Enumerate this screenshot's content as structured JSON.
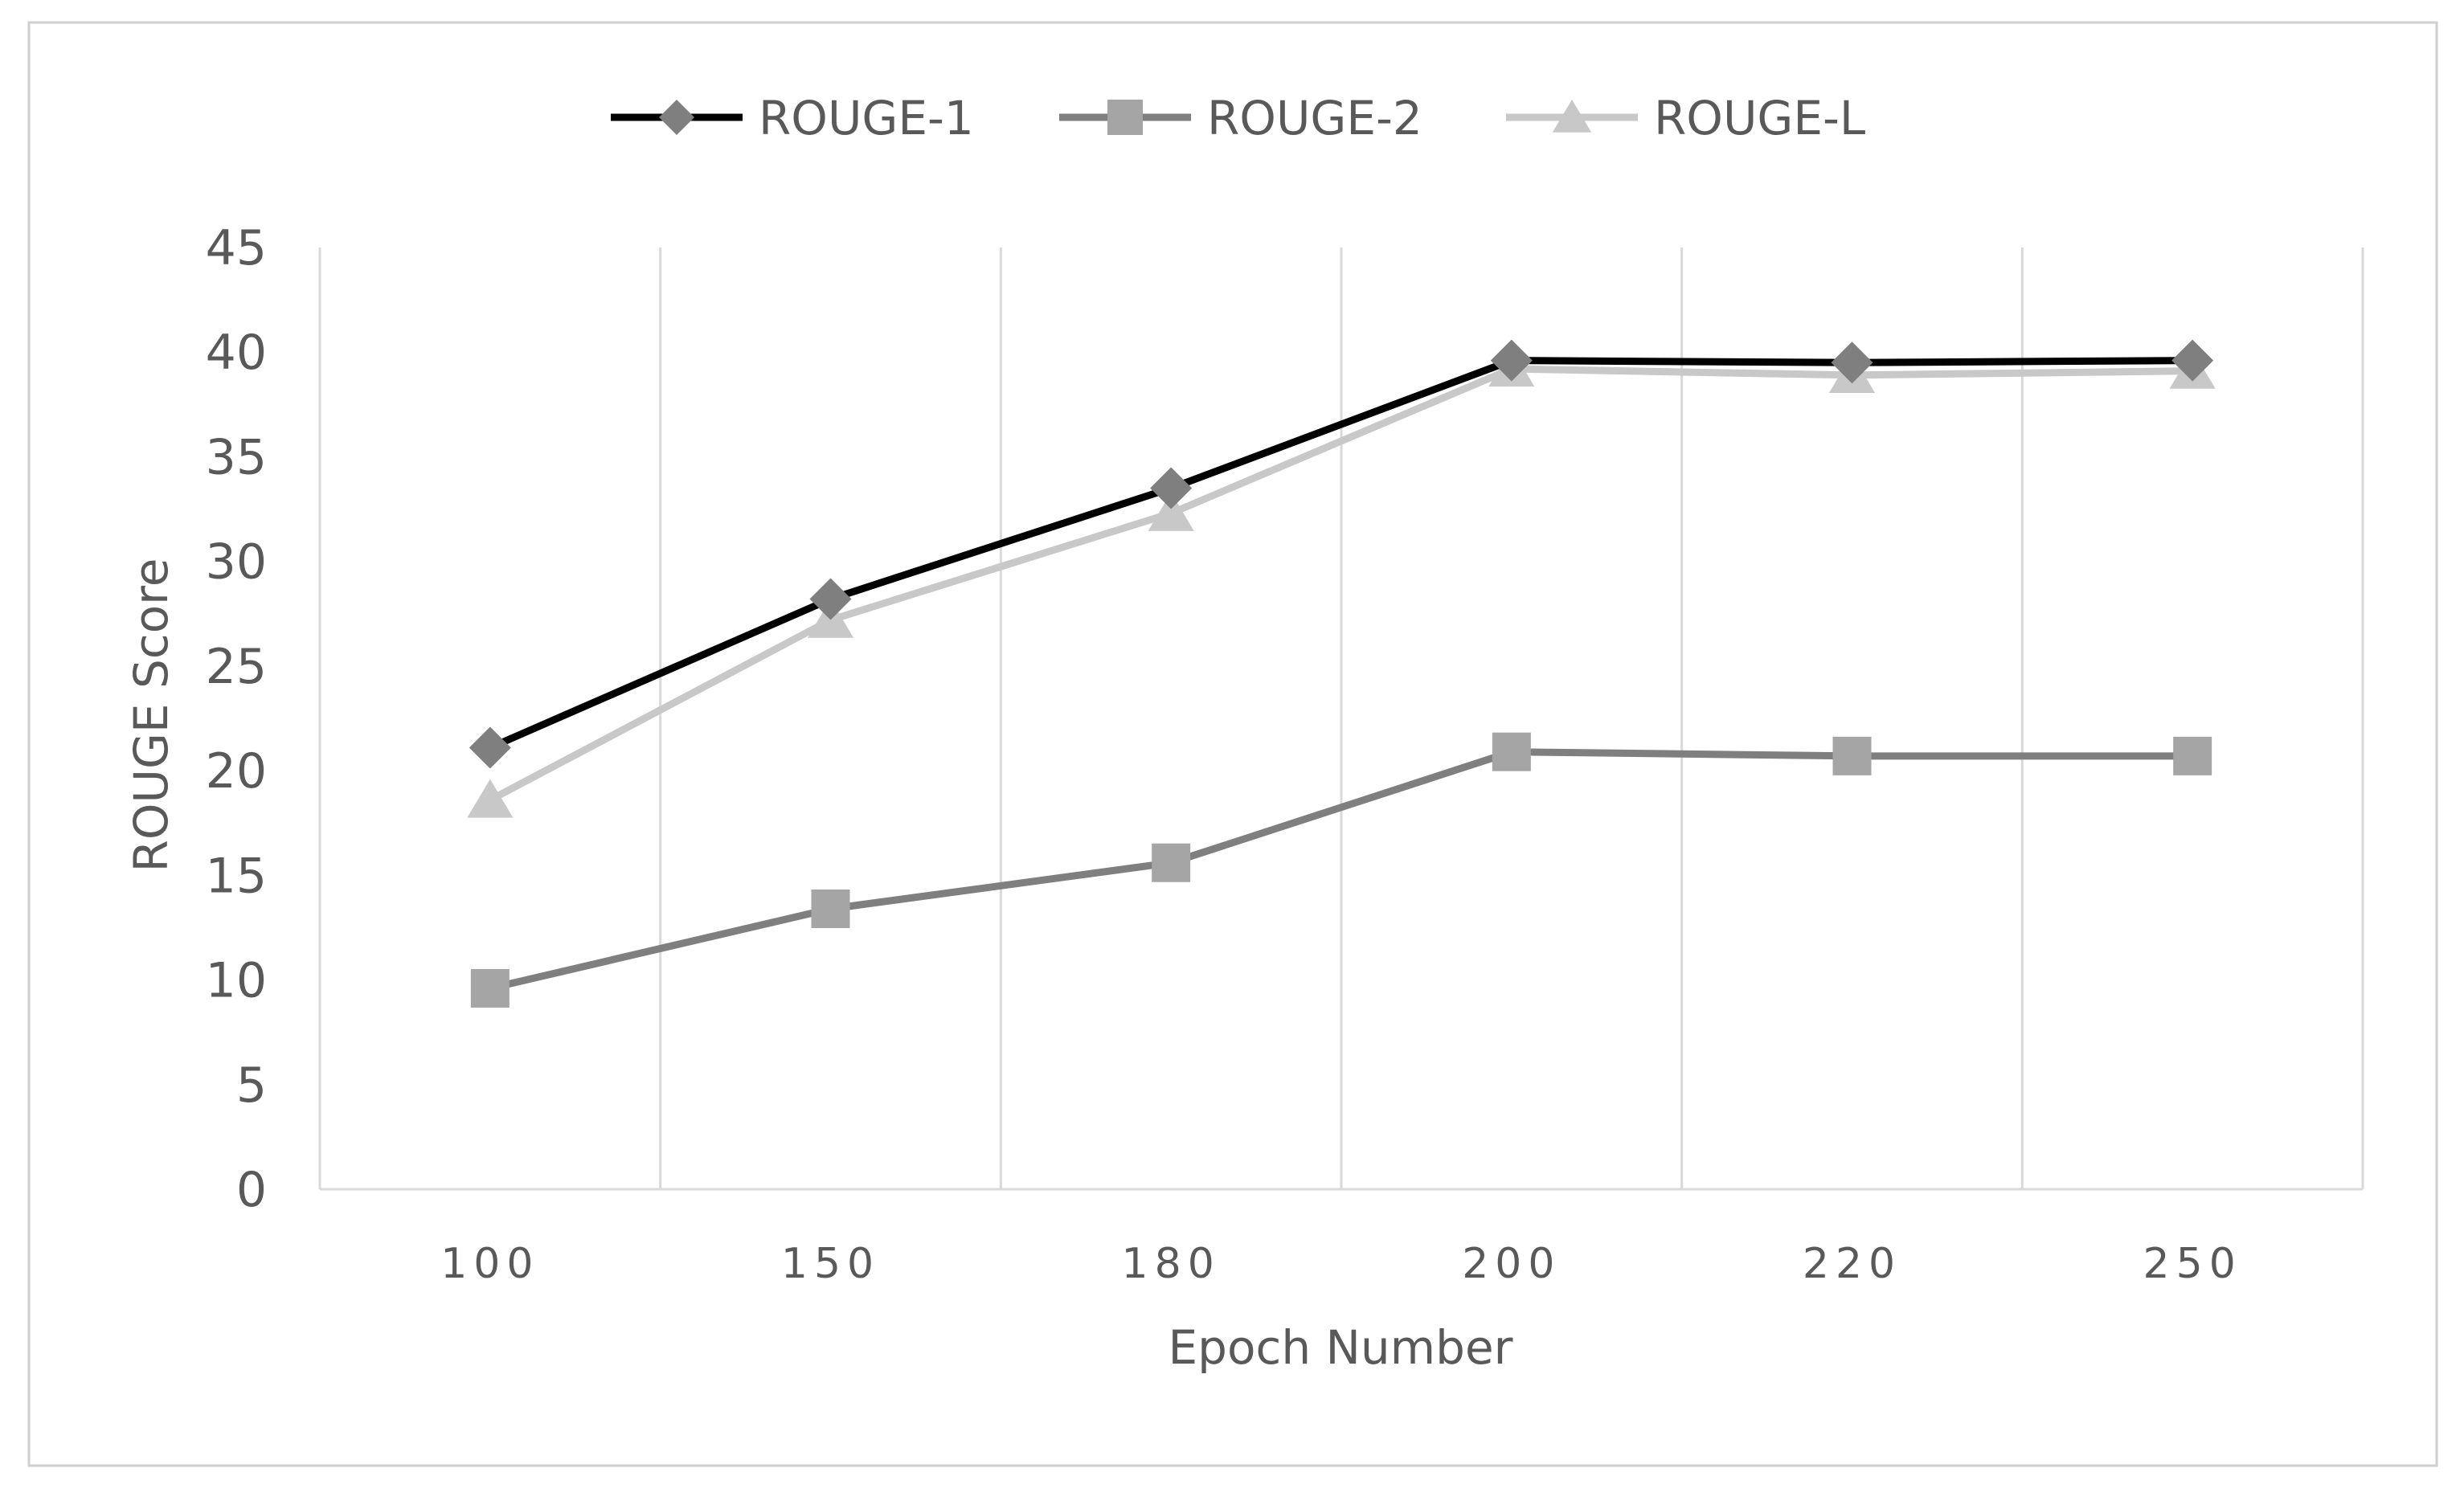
{
  "chart_data": {
    "type": "line",
    "title": "",
    "xlabel": "Epoch Number",
    "ylabel": "ROUGE Score",
    "categories": [
      "100",
      "150",
      "180",
      "200",
      "220",
      "250"
    ],
    "ylim": [
      0,
      45
    ],
    "yticks": [
      0,
      5,
      10,
      15,
      20,
      25,
      30,
      35,
      40,
      45
    ],
    "grid": "vertical",
    "legend_position": "top",
    "series": [
      {
        "name": "ROUGE-1",
        "values": [
          21.1,
          28.2,
          33.5,
          39.6,
          39.5,
          39.6
        ],
        "color": "#000000",
        "marker_color": "#7f7f7f",
        "marker": "diamond"
      },
      {
        "name": "ROUGE-2",
        "values": [
          9.6,
          13.4,
          15.6,
          20.9,
          20.7,
          20.7
        ],
        "color": "#7f7f7f",
        "marker_color": "#a5a5a5",
        "marker": "square"
      },
      {
        "name": "ROUGE-L",
        "values": [
          18.6,
          27.2,
          32.3,
          39.2,
          38.9,
          39.1
        ],
        "color": "#c8c8c8",
        "marker_color": "#c8c8c8",
        "marker": "triangle"
      }
    ]
  }
}
